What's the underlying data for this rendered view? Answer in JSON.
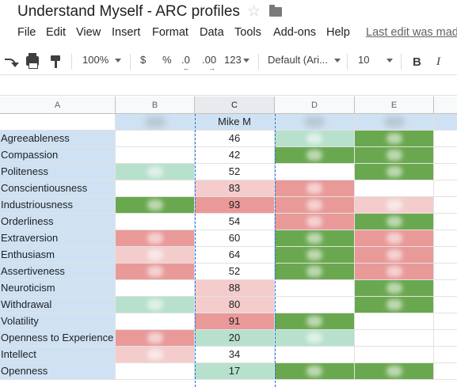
{
  "title": "Understand Myself - ARC profiles",
  "menu": [
    "File",
    "Edit",
    "View",
    "Insert",
    "Format",
    "Data",
    "Tools",
    "Add-ons",
    "Help"
  ],
  "last_edit": "Last edit was mad",
  "toolbar": {
    "zoom": "100%",
    "currency": "$",
    "percent": "%",
    "decrease_decimals": ".0",
    "increase_decimals": ".00",
    "number_format": "123",
    "font": "Default (Ari...",
    "font_size": "10",
    "bold": "B",
    "italic": "I"
  },
  "columns": [
    "A",
    "B",
    "C",
    "D",
    "E"
  ],
  "profile_name": "Mike M",
  "rows": [
    {
      "label": "Agreeableness",
      "value": "46",
      "b": "white",
      "c": "white",
      "d": "light-green",
      "e": "green"
    },
    {
      "label": "Compassion",
      "value": "42",
      "b": "white",
      "c": "white",
      "d": "green",
      "e": "green"
    },
    {
      "label": "Politeness",
      "value": "52",
      "b": "light-green",
      "c": "white",
      "d": "white",
      "e": "green"
    },
    {
      "label": "Conscientiousness",
      "value": "83",
      "b": "white",
      "c": "light-red",
      "d": "red",
      "e": "white"
    },
    {
      "label": "Industriousness",
      "value": "93",
      "b": "green",
      "c": "red",
      "d": "red",
      "e": "light-red"
    },
    {
      "label": "Orderliness",
      "value": "54",
      "b": "white",
      "c": "white",
      "d": "red",
      "e": "green"
    },
    {
      "label": "Extraversion",
      "value": "60",
      "b": "red",
      "c": "white",
      "d": "green",
      "e": "red"
    },
    {
      "label": "Enthusiasm",
      "value": "64",
      "b": "light-red",
      "c": "white",
      "d": "green",
      "e": "red"
    },
    {
      "label": "Assertiveness",
      "value": "52",
      "b": "red",
      "c": "white",
      "d": "green",
      "e": "red"
    },
    {
      "label": "Neuroticism",
      "value": "88",
      "b": "white",
      "c": "light-red",
      "d": "white",
      "e": "green"
    },
    {
      "label": "Withdrawal",
      "value": "80",
      "b": "light-green",
      "c": "light-red",
      "d": "white",
      "e": "green"
    },
    {
      "label": "Volatility",
      "value": "91",
      "b": "white",
      "c": "red",
      "d": "green",
      "e": "white"
    },
    {
      "label": "Openness to Experience",
      "value": "20",
      "b": "red",
      "c": "light-green",
      "d": "light-green",
      "e": "white"
    },
    {
      "label": "Intellect",
      "value": "34",
      "b": "light-red",
      "c": "white",
      "d": "white",
      "e": "white"
    },
    {
      "label": "Openness",
      "value": "17",
      "b": "white",
      "c": "light-green",
      "d": "green",
      "e": "green"
    }
  ],
  "colors": {
    "label-bg": "#cfe2f3",
    "white": "#ffffff",
    "green": "#6aa84f",
    "light-green": "#b7e1cd",
    "red": "#ea9999",
    "light-red": "#f4cccc",
    "header-bg": "#f8f9fa",
    "selection": "#1a73e8"
  }
}
